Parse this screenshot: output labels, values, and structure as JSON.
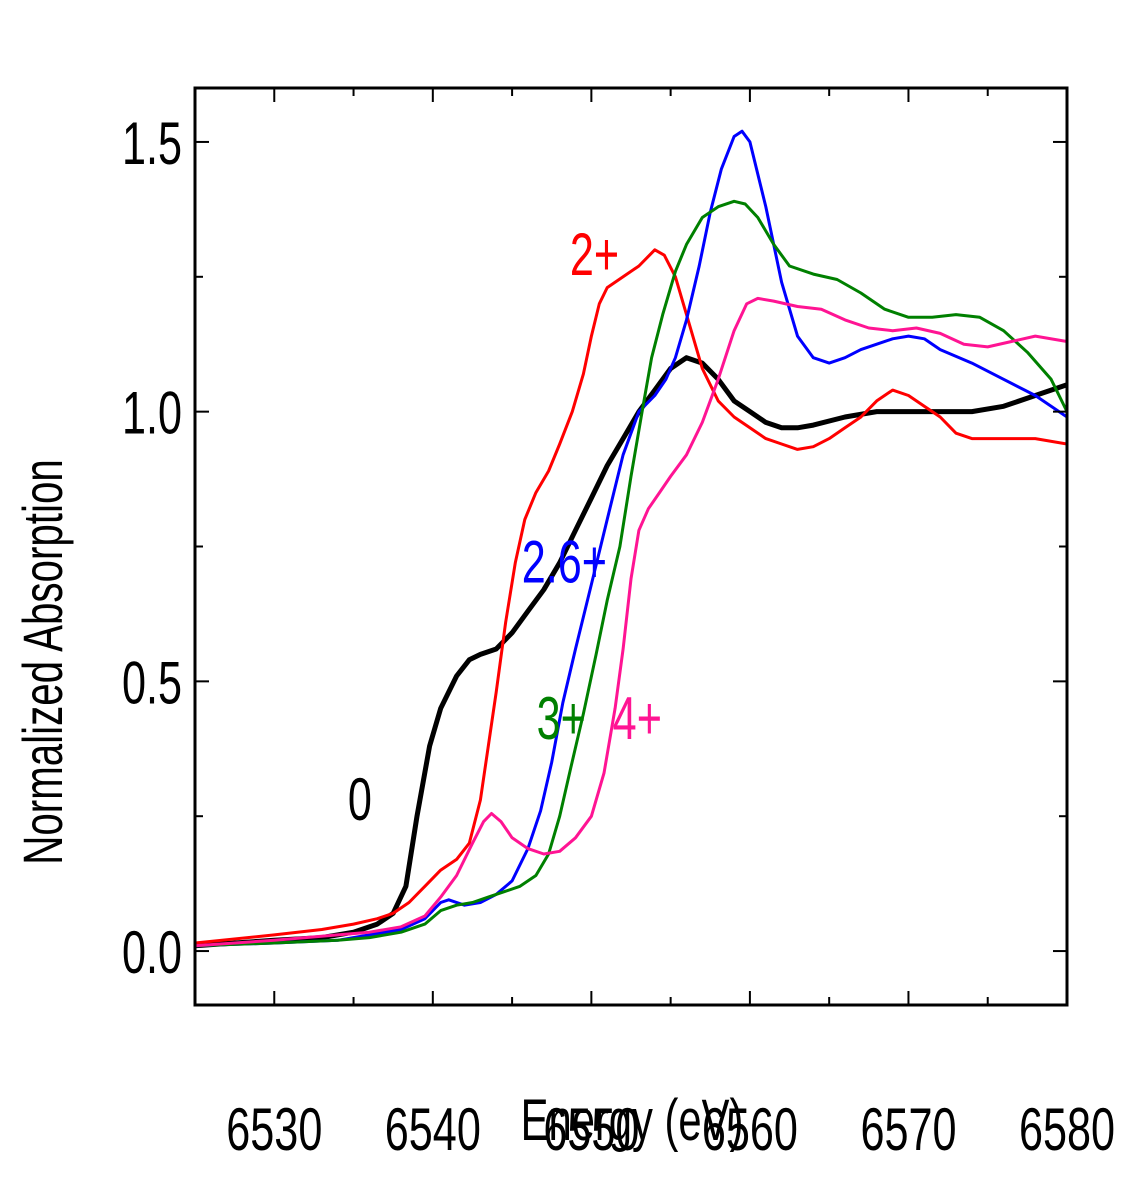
{
  "chart_data": {
    "type": "line",
    "xlabel": "Energy (eV)",
    "ylabel": "Normalized Absorption",
    "xlim": [
      6525,
      6580
    ],
    "ylim": [
      -0.1,
      1.6
    ],
    "x_ticks": [
      6530,
      6540,
      6550,
      6560,
      6570,
      6580
    ],
    "x_tick_labels": [
      "6530",
      "6540",
      "6550",
      "6560",
      "6570",
      "6580"
    ],
    "y_ticks": [
      0.0,
      0.5,
      1.0,
      1.5
    ],
    "y_tick_labels": [
      "0.0",
      "0.5",
      "1.0",
      "1.5"
    ],
    "grid": false,
    "series": [
      {
        "name": "0",
        "color": "#000000",
        "width": 5,
        "label_pos": [
          6535.4,
          0.28
        ],
        "points": [
          [
            6525,
            0.01
          ],
          [
            6530,
            0.02
          ],
          [
            6533,
            0.025
          ],
          [
            6535,
            0.035
          ],
          [
            6536.5,
            0.05
          ],
          [
            6537.5,
            0.07
          ],
          [
            6538.3,
            0.12
          ],
          [
            6539,
            0.25
          ],
          [
            6539.8,
            0.38
          ],
          [
            6540.5,
            0.45
          ],
          [
            6541.5,
            0.51
          ],
          [
            6542.3,
            0.54
          ],
          [
            6543,
            0.55
          ],
          [
            6544,
            0.56
          ],
          [
            6545,
            0.59
          ],
          [
            6546,
            0.63
          ],
          [
            6547,
            0.67
          ],
          [
            6548,
            0.72
          ],
          [
            6549,
            0.78
          ],
          [
            6550,
            0.84
          ],
          [
            6551,
            0.9
          ],
          [
            6552,
            0.95
          ],
          [
            6553,
            1.0
          ],
          [
            6554,
            1.04
          ],
          [
            6555,
            1.08
          ],
          [
            6556,
            1.1
          ],
          [
            6557,
            1.09
          ],
          [
            6558,
            1.06
          ],
          [
            6559,
            1.02
          ],
          [
            6560,
            1.0
          ],
          [
            6561,
            0.98
          ],
          [
            6562,
            0.97
          ],
          [
            6563,
            0.97
          ],
          [
            6564,
            0.975
          ],
          [
            6566,
            0.99
          ],
          [
            6568,
            1.0
          ],
          [
            6570,
            1.0
          ],
          [
            6572,
            1.0
          ],
          [
            6574,
            1.0
          ],
          [
            6576,
            1.01
          ],
          [
            6578,
            1.03
          ],
          [
            6580,
            1.05
          ]
        ]
      },
      {
        "name": "2+",
        "color": "#ff0000",
        "width": 3,
        "label_pos": [
          6550.2,
          1.29
        ],
        "points": [
          [
            6525,
            0.015
          ],
          [
            6530,
            0.03
          ],
          [
            6533,
            0.04
          ],
          [
            6535,
            0.05
          ],
          [
            6536.5,
            0.06
          ],
          [
            6537.5,
            0.07
          ],
          [
            6538.5,
            0.09
          ],
          [
            6539.5,
            0.12
          ],
          [
            6540.5,
            0.15
          ],
          [
            6541.5,
            0.17
          ],
          [
            6542.3,
            0.2
          ],
          [
            6543,
            0.28
          ],
          [
            6543.5,
            0.38
          ],
          [
            6544,
            0.48
          ],
          [
            6544.6,
            0.61
          ],
          [
            6545.2,
            0.72
          ],
          [
            6545.8,
            0.8
          ],
          [
            6546.5,
            0.85
          ],
          [
            6547.3,
            0.89
          ],
          [
            6548,
            0.94
          ],
          [
            6548.8,
            1.0
          ],
          [
            6549.5,
            1.07
          ],
          [
            6550,
            1.14
          ],
          [
            6550.5,
            1.2
          ],
          [
            6551,
            1.23
          ],
          [
            6552,
            1.25
          ],
          [
            6553,
            1.27
          ],
          [
            6554,
            1.3
          ],
          [
            6554.6,
            1.29
          ],
          [
            6555.3,
            1.25
          ],
          [
            6556,
            1.18
          ],
          [
            6557,
            1.08
          ],
          [
            6558,
            1.02
          ],
          [
            6559,
            0.99
          ],
          [
            6560,
            0.97
          ],
          [
            6561,
            0.95
          ],
          [
            6562,
            0.94
          ],
          [
            6563,
            0.93
          ],
          [
            6564,
            0.935
          ],
          [
            6565,
            0.95
          ],
          [
            6566,
            0.97
          ],
          [
            6567,
            0.99
          ],
          [
            6568,
            1.02
          ],
          [
            6569,
            1.04
          ],
          [
            6570,
            1.03
          ],
          [
            6571,
            1.01
          ],
          [
            6572,
            0.99
          ],
          [
            6573,
            0.96
          ],
          [
            6574,
            0.95
          ],
          [
            6576,
            0.95
          ],
          [
            6578,
            0.95
          ],
          [
            6580,
            0.94
          ]
        ]
      },
      {
        "name": "2.6+",
        "color": "#0000ff",
        "width": 3,
        "label_pos": [
          6548.3,
          0.72
        ],
        "points": [
          [
            6525,
            0.01
          ],
          [
            6530,
            0.015
          ],
          [
            6534,
            0.02
          ],
          [
            6536,
            0.03
          ],
          [
            6538,
            0.04
          ],
          [
            6539.5,
            0.06
          ],
          [
            6540.5,
            0.09
          ],
          [
            6541,
            0.095
          ],
          [
            6542,
            0.085
          ],
          [
            6543,
            0.09
          ],
          [
            6544,
            0.105
          ],
          [
            6545,
            0.13
          ],
          [
            6546,
            0.19
          ],
          [
            6546.8,
            0.26
          ],
          [
            6547.5,
            0.35
          ],
          [
            6548.2,
            0.46
          ],
          [
            6549,
            0.56
          ],
          [
            6550,
            0.68
          ],
          [
            6551,
            0.8
          ],
          [
            6552,
            0.92
          ],
          [
            6553,
            1.0
          ],
          [
            6554,
            1.03
          ],
          [
            6554.7,
            1.06
          ],
          [
            6555.3,
            1.1
          ],
          [
            6556,
            1.17
          ],
          [
            6556.8,
            1.27
          ],
          [
            6557.5,
            1.37
          ],
          [
            6558.2,
            1.45
          ],
          [
            6559,
            1.51
          ],
          [
            6559.5,
            1.52
          ],
          [
            6560,
            1.5
          ],
          [
            6561,
            1.38
          ],
          [
            6562,
            1.24
          ],
          [
            6563,
            1.14
          ],
          [
            6564,
            1.1
          ],
          [
            6565,
            1.09
          ],
          [
            6566,
            1.1
          ],
          [
            6567,
            1.115
          ],
          [
            6568,
            1.125
          ],
          [
            6569,
            1.135
          ],
          [
            6570,
            1.14
          ],
          [
            6571,
            1.135
          ],
          [
            6572,
            1.115
          ],
          [
            6574,
            1.09
          ],
          [
            6576,
            1.06
          ],
          [
            6578,
            1.03
          ],
          [
            6580,
            0.99
          ]
        ]
      },
      {
        "name": "3+",
        "color": "#008000",
        "width": 3,
        "label_pos": [
          6548.1,
          0.43
        ],
        "points": [
          [
            6525,
            0.01
          ],
          [
            6530,
            0.015
          ],
          [
            6534,
            0.02
          ],
          [
            6536,
            0.025
          ],
          [
            6538,
            0.035
          ],
          [
            6539.5,
            0.05
          ],
          [
            6540.5,
            0.075
          ],
          [
            6541.5,
            0.085
          ],
          [
            6542.5,
            0.09
          ],
          [
            6543.5,
            0.1
          ],
          [
            6544.5,
            0.11
          ],
          [
            6545.5,
            0.12
          ],
          [
            6546.5,
            0.14
          ],
          [
            6547.3,
            0.18
          ],
          [
            6548,
            0.25
          ],
          [
            6548.7,
            0.34
          ],
          [
            6549.5,
            0.44
          ],
          [
            6550.3,
            0.55
          ],
          [
            6551,
            0.65
          ],
          [
            6551.8,
            0.75
          ],
          [
            6552.5,
            0.88
          ],
          [
            6553.2,
            1.0
          ],
          [
            6553.8,
            1.1
          ],
          [
            6554.5,
            1.18
          ],
          [
            6555.3,
            1.26
          ],
          [
            6556,
            1.31
          ],
          [
            6557,
            1.36
          ],
          [
            6558,
            1.38
          ],
          [
            6559,
            1.39
          ],
          [
            6559.7,
            1.385
          ],
          [
            6560.5,
            1.36
          ],
          [
            6561.5,
            1.31
          ],
          [
            6562.5,
            1.27
          ],
          [
            6564,
            1.255
          ],
          [
            6565.5,
            1.245
          ],
          [
            6567,
            1.22
          ],
          [
            6568.5,
            1.19
          ],
          [
            6570,
            1.175
          ],
          [
            6571.5,
            1.175
          ],
          [
            6573,
            1.18
          ],
          [
            6574.5,
            1.175
          ],
          [
            6576,
            1.15
          ],
          [
            6577.5,
            1.11
          ],
          [
            6579,
            1.06
          ],
          [
            6580,
            1.0
          ]
        ]
      },
      {
        "name": "4+",
        "color": "#ff1493",
        "width": 3,
        "label_pos": [
          6552.9,
          0.43
        ],
        "points": [
          [
            6525,
            0.01
          ],
          [
            6530,
            0.02
          ],
          [
            6534,
            0.03
          ],
          [
            6536,
            0.035
          ],
          [
            6538,
            0.045
          ],
          [
            6539.5,
            0.065
          ],
          [
            6540.5,
            0.1
          ],
          [
            6541.5,
            0.14
          ],
          [
            6542.5,
            0.2
          ],
          [
            6543.2,
            0.24
          ],
          [
            6543.7,
            0.255
          ],
          [
            6544.3,
            0.24
          ],
          [
            6545,
            0.21
          ],
          [
            6546,
            0.19
          ],
          [
            6547,
            0.18
          ],
          [
            6548,
            0.185
          ],
          [
            6549,
            0.21
          ],
          [
            6550,
            0.25
          ],
          [
            6550.8,
            0.33
          ],
          [
            6551.5,
            0.45
          ],
          [
            6552,
            0.56
          ],
          [
            6552.5,
            0.69
          ],
          [
            6553,
            0.78
          ],
          [
            6553.6,
            0.82
          ],
          [
            6554.3,
            0.85
          ],
          [
            6555,
            0.88
          ],
          [
            6556,
            0.92
          ],
          [
            6557,
            0.98
          ],
          [
            6558,
            1.06
          ],
          [
            6559,
            1.15
          ],
          [
            6559.8,
            1.2
          ],
          [
            6560.5,
            1.21
          ],
          [
            6561.5,
            1.205
          ],
          [
            6563,
            1.195
          ],
          [
            6564.5,
            1.19
          ],
          [
            6566,
            1.17
          ],
          [
            6567.5,
            1.155
          ],
          [
            6569,
            1.15
          ],
          [
            6570.5,
            1.155
          ],
          [
            6572,
            1.145
          ],
          [
            6573.5,
            1.125
          ],
          [
            6575,
            1.12
          ],
          [
            6576.5,
            1.13
          ],
          [
            6578,
            1.14
          ],
          [
            6580,
            1.13
          ]
        ]
      }
    ]
  }
}
